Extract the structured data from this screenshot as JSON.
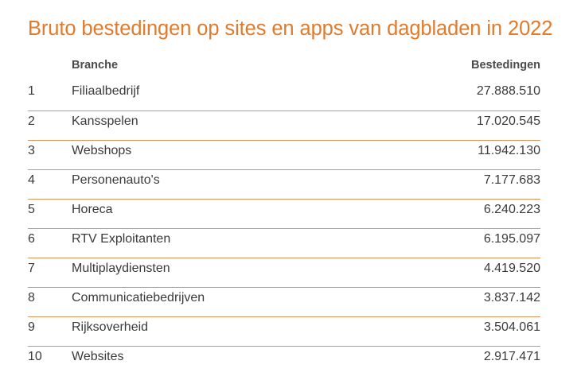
{
  "title": "Bruto bestedingen op sites en apps van dagbladen in 2022",
  "columns": {
    "branche": "Branche",
    "bestedingen": "Bestedingen"
  },
  "rows": [
    {
      "rank": "1",
      "branche": "Filiaalbedrijf",
      "bestedingen": "27.888.510"
    },
    {
      "rank": "2",
      "branche": "Kansspelen",
      "bestedingen": "17.020.545"
    },
    {
      "rank": "3",
      "branche": "Webshops",
      "bestedingen": "11.942.130"
    },
    {
      "rank": "4",
      "branche": "Personenauto's",
      "bestedingen": "7.177.683"
    },
    {
      "rank": "5",
      "branche": "Horeca",
      "bestedingen": "6.240.223"
    },
    {
      "rank": "6",
      "branche": "RTV Exploitanten",
      "bestedingen": "6.195.097"
    },
    {
      "rank": "7",
      "branche": "Multiplaydiensten",
      "bestedingen": "4.419.520"
    },
    {
      "rank": "8",
      "branche": "Communicatiebedrijven",
      "bestedingen": "3.837.142"
    },
    {
      "rank": "9",
      "branche": "Rijksoverheid",
      "bestedingen": "3.504.061"
    },
    {
      "rank": "10",
      "branche": "Websites",
      "bestedingen": "2.917.471"
    }
  ],
  "colors": {
    "accent": "#e07a2c",
    "divider": "#d9945a",
    "text": "#3a3a3a"
  }
}
